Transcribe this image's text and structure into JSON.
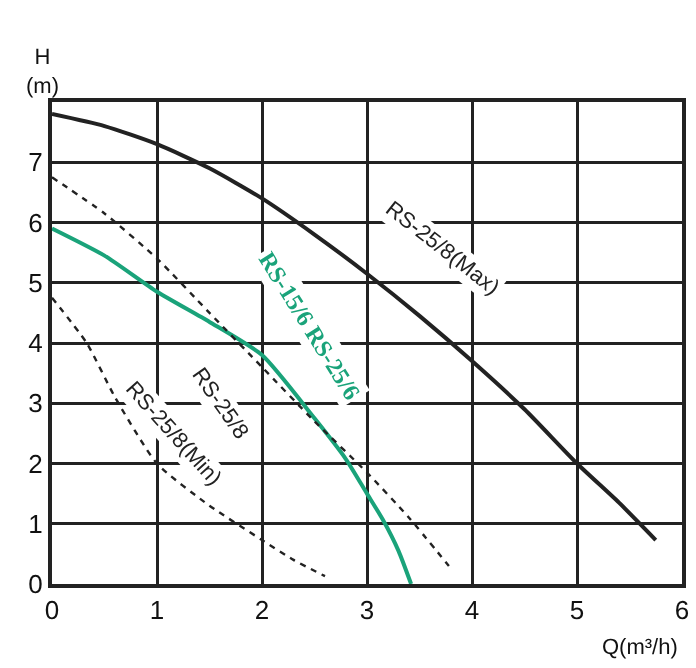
{
  "chart_data": {
    "type": "line",
    "xlabel": "Q(m³/h)",
    "ylabel": "H (m)",
    "xlim": [
      0,
      6
    ],
    "ylim": [
      0,
      8
    ],
    "xticks": [
      0,
      1,
      2,
      3,
      4,
      5,
      6
    ],
    "yticks": [
      0,
      1,
      2,
      3,
      4,
      5,
      6,
      7
    ],
    "grid": true,
    "legend": false,
    "marker": "none",
    "series": [
      {
        "name": "RS-25/8(Max)",
        "color": "#222222",
        "line_style": "solid",
        "x": [
          0,
          0.5,
          1,
          1.5,
          2,
          2.5,
          3,
          3.5,
          4,
          4.5,
          5,
          5.4,
          5.75
        ],
        "values": [
          7.8,
          7.6,
          7.3,
          6.9,
          6.4,
          5.8,
          5.15,
          4.45,
          3.7,
          2.9,
          2.0,
          1.35,
          0.73
        ]
      },
      {
        "name": "RS-15/6 RS-25/6",
        "color": "#1aa37a",
        "line_style": "solid",
        "x": [
          0,
          0.5,
          1,
          1.5,
          2,
          2.5,
          2.8,
          3,
          3.15,
          3.3,
          3.42
        ],
        "values": [
          5.9,
          5.45,
          4.85,
          4.35,
          3.8,
          2.75,
          2.07,
          1.5,
          1.07,
          0.55,
          0
        ]
      },
      {
        "name": "RS-25/8",
        "color": "#222222",
        "line_style": "dotted",
        "x": [
          0,
          0.5,
          1,
          1.5,
          2,
          2.5,
          3,
          3.4,
          3.78
        ],
        "values": [
          6.75,
          6.15,
          5.4,
          4.5,
          3.6,
          2.7,
          1.85,
          1.1,
          0.3
        ]
      },
      {
        "name": "RS-25/8(Min)",
        "color": "#222222",
        "line_style": "dotted",
        "x": [
          0,
          0.33,
          0.6,
          1,
          1.5,
          2,
          2.3,
          2.6
        ],
        "values": [
          4.75,
          4.0,
          3.1,
          2.0,
          1.3,
          0.73,
          0.4,
          0.13
        ]
      }
    ]
  }
}
